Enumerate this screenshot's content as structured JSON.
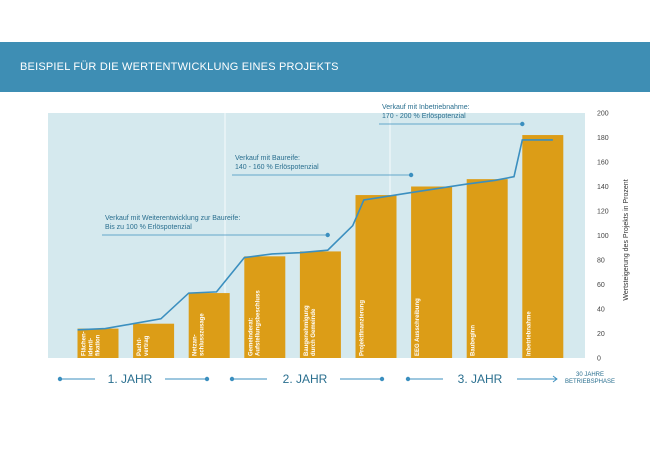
{
  "header": {
    "title": "BEISPIEL FÜR DIE WERTENTWICKLUNG EINES PROJEKTS"
  },
  "colors": {
    "header": "#3e8eb4",
    "plot_bg": "#d5e9ee",
    "bar": "#dc9d17",
    "line": "#3b8fbf",
    "text": "#2a6f8f"
  },
  "chart_data": {
    "type": "bar",
    "title": "",
    "ylabel": "Wertsteigerung des Projekts in Prozent",
    "ylim": [
      0,
      200
    ],
    "yticks": [
      0,
      20,
      40,
      60,
      80,
      100,
      120,
      140,
      160,
      180,
      200
    ],
    "categories": [
      "Flächen-\nidenti-\nfikation",
      "Pacht-\nvertrag",
      "Netzan-\nschlusszusage",
      "Gemeinderat:\nAufstellungsbeschluss",
      "Baugenehmigung\ndurch Gemeinde",
      "Projektfinanzierung",
      "EEG Ausschreibung",
      "Baubeginn",
      "Inbetriebnahme"
    ],
    "values": [
      24,
      28,
      53,
      83,
      87,
      133,
      140,
      146,
      182
    ],
    "value_line": {
      "name": "Wertentwicklung",
      "x": [
        0.0,
        0.5,
        1.0,
        1.5,
        2.0,
        2.5,
        3.0,
        3.5,
        4.0,
        4.5,
        4.95,
        5.15,
        6.0,
        7.0,
        7.5,
        7.85,
        8.0,
        8.55
      ],
      "y": [
        23,
        24,
        28,
        32,
        53,
        54,
        82,
        85,
        86,
        88,
        108,
        129,
        135,
        142,
        145,
        148,
        178,
        178
      ]
    },
    "annotations": [
      {
        "lines": [
          "Verkauf mit Weiterentwicklung zur Baureife:",
          "Bis zu 100 % Erlöspotenzial"
        ],
        "target": [
          4.5,
          100
        ]
      },
      {
        "lines": [
          "Verkauf mit Baureife:",
          "140 - 160 % Erlöspotenzial"
        ],
        "target": [
          6.0,
          140
        ]
      },
      {
        "lines": [
          "Verkauf mit Inbetriebnahme:",
          "170 - 200 % Erlöspotenzial"
        ],
        "target": [
          8.0,
          190
        ]
      }
    ],
    "timeline": {
      "years": [
        "1. JAHR",
        "2. JAHR",
        "3. JAHR"
      ],
      "end_label": [
        "30 JAHRE",
        "BETRIEBSPHASE"
      ]
    }
  }
}
